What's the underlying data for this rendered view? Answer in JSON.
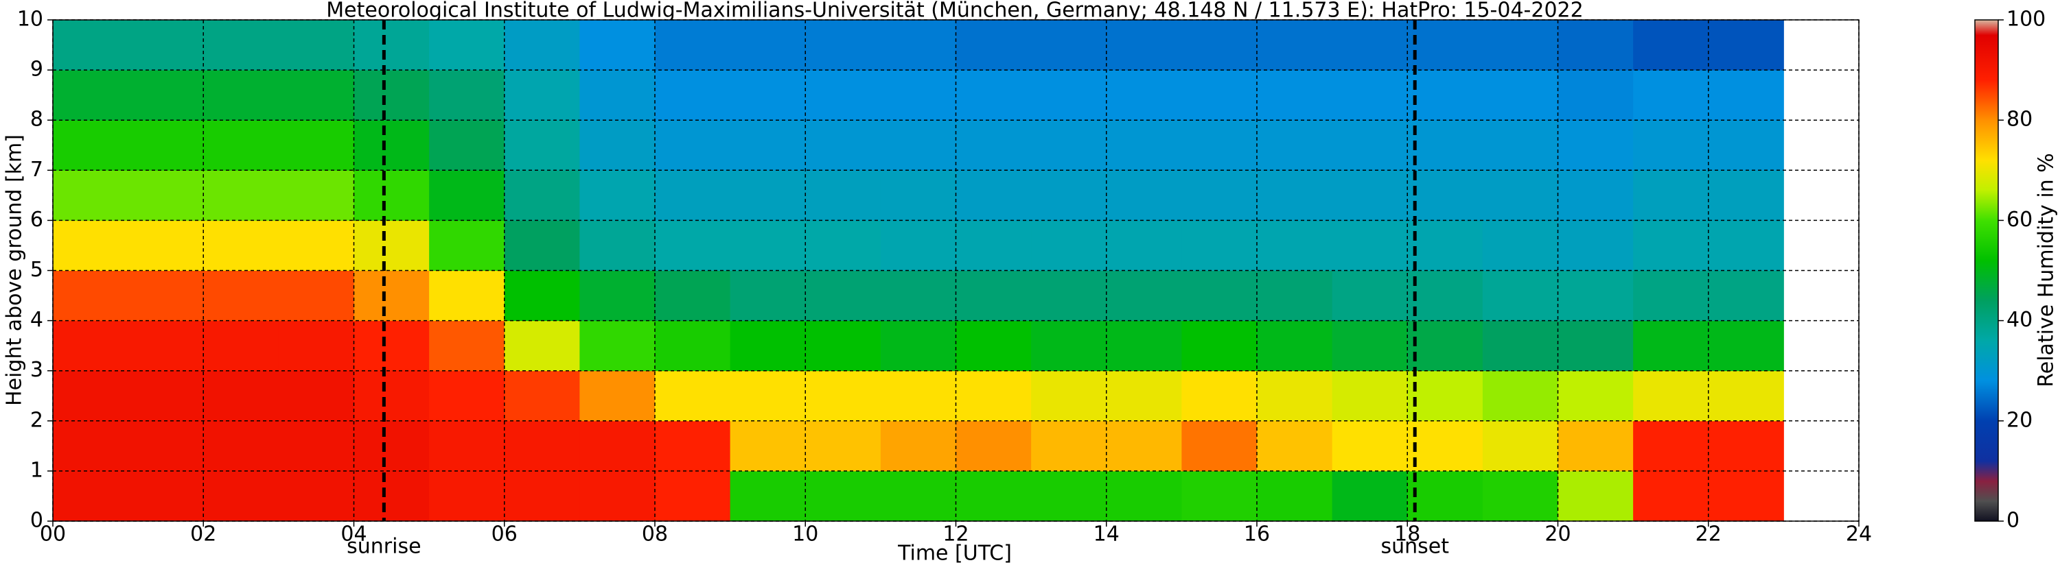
{
  "chart_data": {
    "type": "heatmap",
    "title": "Meteorological Institute of Ludwig-Maximilians-Universität (München, Germany; 48.148 N / 11.573 E):    HatPro: 15-04-2022",
    "xlabel": "Time [UTC]",
    "ylabel": "Height above ground [km]",
    "colorbar_label": "Relative Humidity in %",
    "x_edges": [
      0,
      1,
      2,
      3,
      4,
      5,
      6,
      7,
      8,
      9,
      10,
      11,
      12,
      13,
      14,
      15,
      16,
      17,
      18,
      19,
      20,
      21,
      22,
      23
    ],
    "y_edges": [
      0,
      1,
      2,
      3,
      4,
      5,
      6,
      7,
      8,
      9,
      10
    ],
    "values": [
      [
        92,
        92,
        92,
        90,
        85,
        72,
        62,
        55,
        48,
        40
      ],
      [
        92,
        92,
        92,
        90,
        85,
        72,
        62,
        55,
        48,
        40
      ],
      [
        92,
        92,
        92,
        90,
        85,
        72,
        62,
        55,
        48,
        40
      ],
      [
        92,
        92,
        92,
        90,
        85,
        72,
        62,
        55,
        48,
        40
      ],
      [
        92,
        92,
        90,
        88,
        80,
        70,
        58,
        50,
        45,
        38
      ],
      [
        90,
        90,
        88,
        84,
        72,
        58,
        50,
        45,
        42,
        36
      ],
      [
        90,
        90,
        86,
        68,
        52,
        44,
        40,
        37,
        35,
        32
      ],
      [
        90,
        90,
        80,
        58,
        48,
        38,
        35,
        32,
        30,
        28
      ],
      [
        88,
        88,
        72,
        55,
        45,
        36,
        33,
        30,
        28,
        26
      ],
      [
        55,
        75,
        72,
        52,
        42,
        36,
        33,
        30,
        28,
        26
      ],
      [
        55,
        75,
        72,
        52,
        42,
        36,
        33,
        30,
        28,
        26
      ],
      [
        55,
        78,
        72,
        50,
        42,
        35,
        33,
        30,
        28,
        26
      ],
      [
        55,
        80,
        72,
        52,
        42,
        35,
        32,
        30,
        28,
        25
      ],
      [
        55,
        76,
        70,
        50,
        42,
        35,
        32,
        30,
        28,
        25
      ],
      [
        55,
        76,
        70,
        50,
        42,
        35,
        32,
        30,
        28,
        25
      ],
      [
        56,
        82,
        72,
        52,
        42,
        35,
        32,
        30,
        28,
        25
      ],
      [
        55,
        75,
        70,
        50,
        42,
        35,
        32,
        30,
        28,
        25
      ],
      [
        50,
        72,
        68,
        48,
        40,
        35,
        32,
        30,
        28,
        25
      ],
      [
        55,
        72,
        66,
        46,
        40,
        35,
        32,
        30,
        28,
        25
      ],
      [
        56,
        70,
        64,
        44,
        38,
        34,
        32,
        30,
        28,
        25
      ],
      [
        65,
        76,
        66,
        44,
        38,
        33,
        31,
        29,
        27,
        24
      ],
      [
        88,
        88,
        70,
        50,
        40,
        35,
        33,
        30,
        28,
        22
      ],
      [
        88,
        88,
        70,
        50,
        40,
        35,
        33,
        30,
        28,
        22
      ]
    ],
    "colorscale": [
      [
        0,
        "#101020"
      ],
      [
        4,
        "#505050"
      ],
      [
        8,
        "#8a2040"
      ],
      [
        12,
        "#1030a0"
      ],
      [
        20,
        "#0040b0"
      ],
      [
        28,
        "#0090e0"
      ],
      [
        36,
        "#00a8a8"
      ],
      [
        44,
        "#00a060"
      ],
      [
        52,
        "#00c000"
      ],
      [
        60,
        "#40e000"
      ],
      [
        66,
        "#c0f000"
      ],
      [
        72,
        "#ffe000"
      ],
      [
        80,
        "#ff9000"
      ],
      [
        88,
        "#ff2000"
      ],
      [
        97,
        "#e00000"
      ],
      [
        100,
        "#d8b8a0"
      ]
    ],
    "xlim": [
      0,
      24
    ],
    "xticks": [
      {
        "value": 0,
        "label": "00"
      },
      {
        "value": 2,
        "label": "02"
      },
      {
        "value": 4,
        "label": "04"
      },
      {
        "value": 6,
        "label": "06"
      },
      {
        "value": 8,
        "label": "08"
      },
      10,
      12,
      14,
      16,
      18,
      20,
      22,
      24
    ],
    "ylim": [
      0,
      10
    ],
    "yticks": [
      0,
      1,
      2,
      3,
      4,
      5,
      6,
      7,
      8,
      9,
      10
    ],
    "clim": [
      0,
      100
    ],
    "cticks": [
      0,
      20,
      40,
      60,
      80,
      100
    ],
    "grid": true,
    "markers": [
      {
        "label": "sunrise",
        "value": 4.4
      },
      {
        "label": "sunset",
        "value": 18.1
      }
    ]
  }
}
